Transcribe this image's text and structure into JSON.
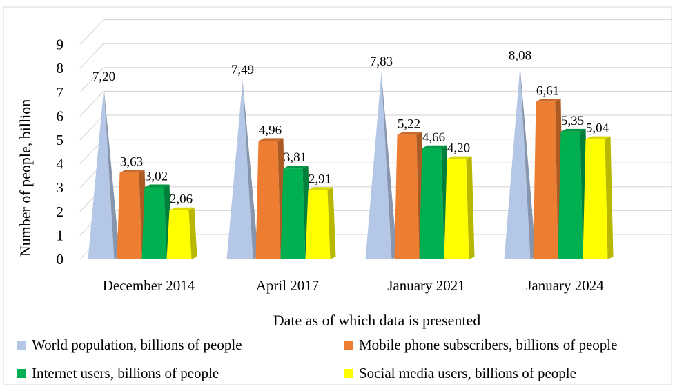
{
  "chart_data": {
    "type": "bar",
    "title": "",
    "xlabel": "Date as of which data is presented",
    "ylabel": "Number of people, billion",
    "ylim": [
      0,
      9
    ],
    "y_ticks": [
      "0",
      "1",
      "2",
      "3",
      "4",
      "5",
      "6",
      "7",
      "8",
      "9"
    ],
    "grid": true,
    "legend_position": "bottom",
    "categories": [
      "December 2014",
      "April 2017",
      "January 2021",
      "January 2024"
    ],
    "series": [
      {
        "name": "World population, billions of people",
        "color": "#b4c7e7",
        "shape": "pyramid",
        "values": [
          7.2,
          7.49,
          7.83,
          8.08
        ],
        "labels": [
          "7,20",
          "7,49",
          "7,83",
          "8,08"
        ]
      },
      {
        "name": "Mobile phone subscribers, billions of people",
        "color": "#ed7d31",
        "shape": "trapezoid",
        "values": [
          3.63,
          4.96,
          5.22,
          6.61
        ],
        "labels": [
          "3,63",
          "4,96",
          "5,22",
          "6,61"
        ]
      },
      {
        "name": "Internet users, billions of people",
        "color": "#00b050",
        "shape": "trapezoid",
        "values": [
          3.02,
          3.81,
          4.66,
          5.35
        ],
        "labels": [
          "3,02",
          "3,81",
          "4,66",
          "5,35"
        ]
      },
      {
        "name": "Social media users, billions of people",
        "color": "#ffff00",
        "shape": "trapezoid",
        "values": [
          2.06,
          2.91,
          4.2,
          5.04
        ],
        "labels": [
          "2,06",
          "2,91",
          "4,20",
          "5,04"
        ]
      }
    ]
  }
}
